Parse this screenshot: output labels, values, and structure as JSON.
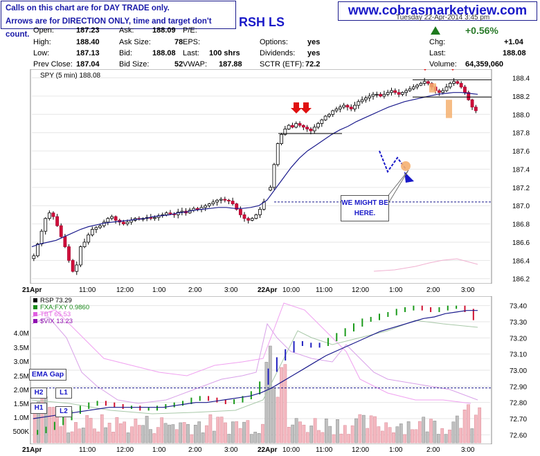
{
  "notice": {
    "line1": "Calls on this chart are for DAY TRADE only.",
    "line2": "Arrows are for DIRECTION ONLY, time and target don't count."
  },
  "website": "www.cobrasmarketview.com",
  "symbol_header": "RSH LS",
  "date_partial": "Tuesday 22-Apr-2014 3:45 pm",
  "quote": {
    "open_label": "Open:",
    "open": "187.23",
    "high_label": "High:",
    "high": "188.40",
    "low_label": "Low:",
    "low": "187.13",
    "prev_close_label": "Prev Close:",
    "prev_close": "187.04",
    "ask_label": "Ask:",
    "ask": "188.09",
    "ask_size_label": "Ask Size:",
    "ask_size": "78",
    "bid_label": "Bid:",
    "bid": "188.08",
    "bid_size_label": "Bid Size:",
    "bid_size": "52",
    "pe_label": "P/E:",
    "pe": "",
    "eps_label": "EPS:",
    "eps": "",
    "last_label": "Last:",
    "last": "100 shrs",
    "vwap_label": "VWAP:",
    "vwap": "187.88",
    "options_label": "Options:",
    "options": "yes",
    "dividends_label": "Dividends:",
    "dividends": "yes",
    "sctr_label": "SCTR (ETF):",
    "sctr": "72.2",
    "chg_pct": "+0.56%",
    "chg_label": "Chg:",
    "chg": "+1.04",
    "last2_label": "Last:",
    "last2": "188.08",
    "volume_label": "Volume:",
    "volume": "64,359,060"
  },
  "chart_data": [
    {
      "type": "candlestick",
      "series_label": "SPY (5 min) 188.08",
      "y_ticks": [
        "188.4",
        "188.2",
        "188.0",
        "187.8",
        "187.6",
        "187.4",
        "187.2",
        "187.0",
        "186.8",
        "186.6",
        "186.4",
        "186.2"
      ],
      "ylim": [
        186.16,
        188.48
      ],
      "x_ticks": [
        "21Apr",
        "11:00",
        "12:00",
        "1:00",
        "2:00",
        "3:00",
        "22Apr",
        "10:00",
        "11:00",
        "12:00",
        "1:00",
        "2:00",
        "3:00"
      ],
      "path_day1": [
        186.45,
        186.58,
        186.72,
        186.86,
        186.92,
        186.88,
        186.78,
        186.66,
        186.55,
        186.4,
        186.28,
        186.35,
        186.55,
        186.6,
        186.68,
        186.74,
        186.76,
        186.78,
        186.82,
        186.86,
        186.88,
        186.84,
        186.82,
        186.8,
        186.82,
        186.84,
        186.86,
        186.85,
        186.86,
        186.87,
        186.86,
        186.87,
        186.89,
        186.9,
        186.92,
        186.91,
        186.9,
        186.93,
        186.94,
        186.92,
        186.95,
        186.97,
        186.96,
        186.98,
        187.0,
        187.02,
        187.04,
        187.06,
        187.07,
        187.06,
        187.05,
        187.02,
        186.96,
        186.9,
        186.86,
        186.84,
        186.86,
        186.9,
        186.96,
        187.04
      ],
      "path_day2": [
        187.2,
        187.45,
        187.68,
        187.78,
        187.84,
        187.88,
        187.86,
        187.9,
        187.88,
        187.86,
        187.84,
        187.82,
        187.86,
        187.9,
        187.94,
        187.98,
        188.0,
        188.04,
        188.06,
        188.08,
        188.1,
        188.08,
        188.06,
        188.1,
        188.14,
        188.16,
        188.18,
        188.2,
        188.22,
        188.22,
        188.2,
        188.22,
        188.24,
        188.26,
        188.24,
        188.22,
        188.24,
        188.26,
        188.28,
        188.3,
        188.32,
        188.34,
        188.36,
        188.34,
        188.3,
        188.26,
        188.24,
        188.26,
        188.3,
        188.34,
        188.36,
        188.34,
        188.3,
        188.24,
        188.16,
        188.08,
        188.04
      ],
      "ema_path": [
        186.55,
        186.58,
        186.6,
        186.62,
        186.66,
        186.7,
        186.74,
        186.77,
        186.79,
        186.81,
        186.82,
        186.83,
        186.84,
        186.85,
        186.86,
        186.88,
        186.89,
        186.9,
        186.92,
        186.93,
        186.95,
        186.96,
        186.97,
        186.98,
        186.98,
        186.97,
        186.97,
        186.98,
        187.0,
        187.06,
        187.18,
        187.3,
        187.42,
        187.52,
        187.6,
        187.66,
        187.72,
        187.78,
        187.83,
        187.87,
        187.92,
        187.96,
        188.0,
        188.04,
        188.08,
        188.11,
        188.14,
        188.16,
        188.18,
        188.2,
        188.22,
        188.23,
        188.24,
        188.24,
        188.23,
        188.22
      ],
      "resistance_upper": 188.38,
      "resistance_lower": 188.19,
      "support_level": 187.79,
      "dashed_level": 187.04,
      "annotation": "WE MIGHT BE HERE."
    },
    {
      "type": "line",
      "legend": [
        {
          "name": "RSP 73.29",
          "color": "#000000"
        },
        {
          "name": "FXA:FXY 0.9860",
          "color": "#1a8a1a"
        },
        {
          "name": "TBT 65.53",
          "color": "#e060e0"
        },
        {
          "name": "$VIX 13.23",
          "color": "#9010b0"
        }
      ],
      "y_ticks": [
        "73.40",
        "73.30",
        "73.20",
        "73.10",
        "73.00",
        "72.90",
        "72.80",
        "72.70",
        "72.60"
      ],
      "ylim": [
        72.55,
        73.45
      ],
      "volume_ticks": [
        "4.0M",
        "3.5M",
        "3.0M",
        "2.5M",
        "2.0M",
        "1.5M",
        "1.0M",
        "500K"
      ],
      "x_ticks": [
        "21Apr",
        "11:00",
        "12:00",
        "1:00",
        "2:00",
        "3:00",
        "22Apr",
        "10:00",
        "11:00",
        "12:00",
        "1:00",
        "2:00",
        "3:00"
      ],
      "rsp_path": [
        72.62,
        72.64,
        72.67,
        72.7,
        72.74,
        72.77,
        72.79,
        72.8,
        72.79,
        72.78,
        72.77,
        72.77,
        72.76,
        72.76,
        72.77,
        72.78,
        72.79,
        72.8,
        72.82,
        72.83,
        72.82,
        72.81,
        72.8,
        72.81,
        72.83,
        72.86,
        72.92,
        73.0,
        73.07,
        73.12,
        73.17,
        73.16,
        73.15,
        73.16,
        73.19,
        73.22,
        73.25,
        73.28,
        73.31,
        73.32,
        73.34,
        73.35,
        73.37,
        73.38,
        73.39,
        73.38,
        73.37,
        73.38,
        73.39,
        73.39,
        73.37,
        73.32
      ],
      "ema_path": [
        72.7,
        72.71,
        72.72,
        72.73,
        72.74,
        72.75,
        72.76,
        72.77,
        72.77,
        72.77,
        72.77,
        72.77,
        72.77,
        72.78,
        72.79,
        72.8,
        72.8,
        72.81,
        72.82,
        72.83,
        72.84,
        72.86,
        72.89,
        72.93,
        72.97,
        73.01,
        73.05,
        73.09,
        73.12,
        73.15,
        73.18,
        73.21,
        73.24,
        73.26,
        73.28,
        73.3,
        73.32,
        73.33,
        73.35,
        73.36,
        73.37,
        73.37
      ],
      "dashed_level": 72.89,
      "labels": [
        "EMA Gap",
        "H2",
        "L1",
        "H1",
        "L2"
      ]
    }
  ]
}
